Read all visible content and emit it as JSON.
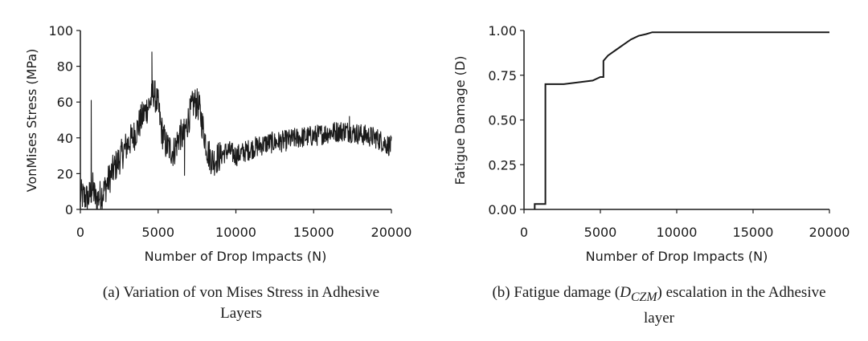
{
  "chart_data": [
    {
      "type": "line",
      "xlabel": "Number of Drop Impacts (N)",
      "ylabel": "VonMises Stress (MPa)",
      "xlim": [
        0,
        20000
      ],
      "ylim": [
        0,
        100
      ],
      "xticks": [
        "0",
        "5000",
        "10000",
        "15000",
        "20000"
      ],
      "yticks": [
        "0",
        "20",
        "40",
        "60",
        "80",
        "100"
      ],
      "grid": false,
      "caption": "(a)  Variation of von Mises Stress in Adhesive Layers",
      "series": [
        {
          "style": "noisy",
          "x": [
            0,
            500,
            800,
            1000,
            1500,
            2000,
            2500,
            3000,
            3500,
            4000,
            4500,
            4700,
            5000,
            5200,
            5500,
            6000,
            6400,
            6600,
            7000,
            7300,
            7600,
            7900,
            8200,
            8500,
            9000,
            9500,
            10000,
            11000,
            12000,
            13000,
            14000,
            15000,
            15500,
            16000,
            17000,
            18000,
            19000,
            20000
          ],
          "y": [
            8,
            6,
            12,
            5,
            10,
            20,
            28,
            36,
            42,
            52,
            60,
            66,
            58,
            45,
            36,
            32,
            42,
            40,
            52,
            60,
            58,
            45,
            32,
            27,
            30,
            33,
            30,
            34,
            37,
            38,
            40,
            41,
            42,
            43,
            44,
            42,
            40,
            35
          ]
        }
      ],
      "spikes": [
        {
          "x": 700,
          "y": 61
        },
        {
          "x": 4600,
          "y": 88
        },
        {
          "x": 6700,
          "y": 19
        },
        {
          "x": 17300,
          "y": 52
        }
      ]
    },
    {
      "type": "line",
      "xlabel": "Number of Drop Impacts (N)",
      "ylabel": "Fatigue Damage (D)",
      "xlim": [
        0,
        20000
      ],
      "ylim": [
        0,
        1
      ],
      "xticks": [
        "0",
        "5000",
        "10000",
        "15000",
        "20000"
      ],
      "yticks": [
        "0.00",
        "0.25",
        "0.50",
        "0.75",
        "1.00"
      ],
      "grid": false,
      "caption_prefix": "(b)  Fatigue damage (",
      "caption_symbol": "D",
      "caption_subscript": "CZM",
      "caption_suffix": ") escalation in the Adhesive layer",
      "series": [
        {
          "style": "step",
          "x": [
            700,
            700,
            1400,
            1400,
            2600,
            3500,
            4500,
            5000,
            5200,
            5200,
            5500,
            6000,
            6500,
            7000,
            7500,
            8000,
            8400,
            20000
          ],
          "y": [
            0,
            0.03,
            0.03,
            0.7,
            0.7,
            0.71,
            0.72,
            0.74,
            0.74,
            0.83,
            0.86,
            0.89,
            0.92,
            0.95,
            0.97,
            0.98,
            0.99,
            0.99
          ]
        }
      ]
    }
  ]
}
